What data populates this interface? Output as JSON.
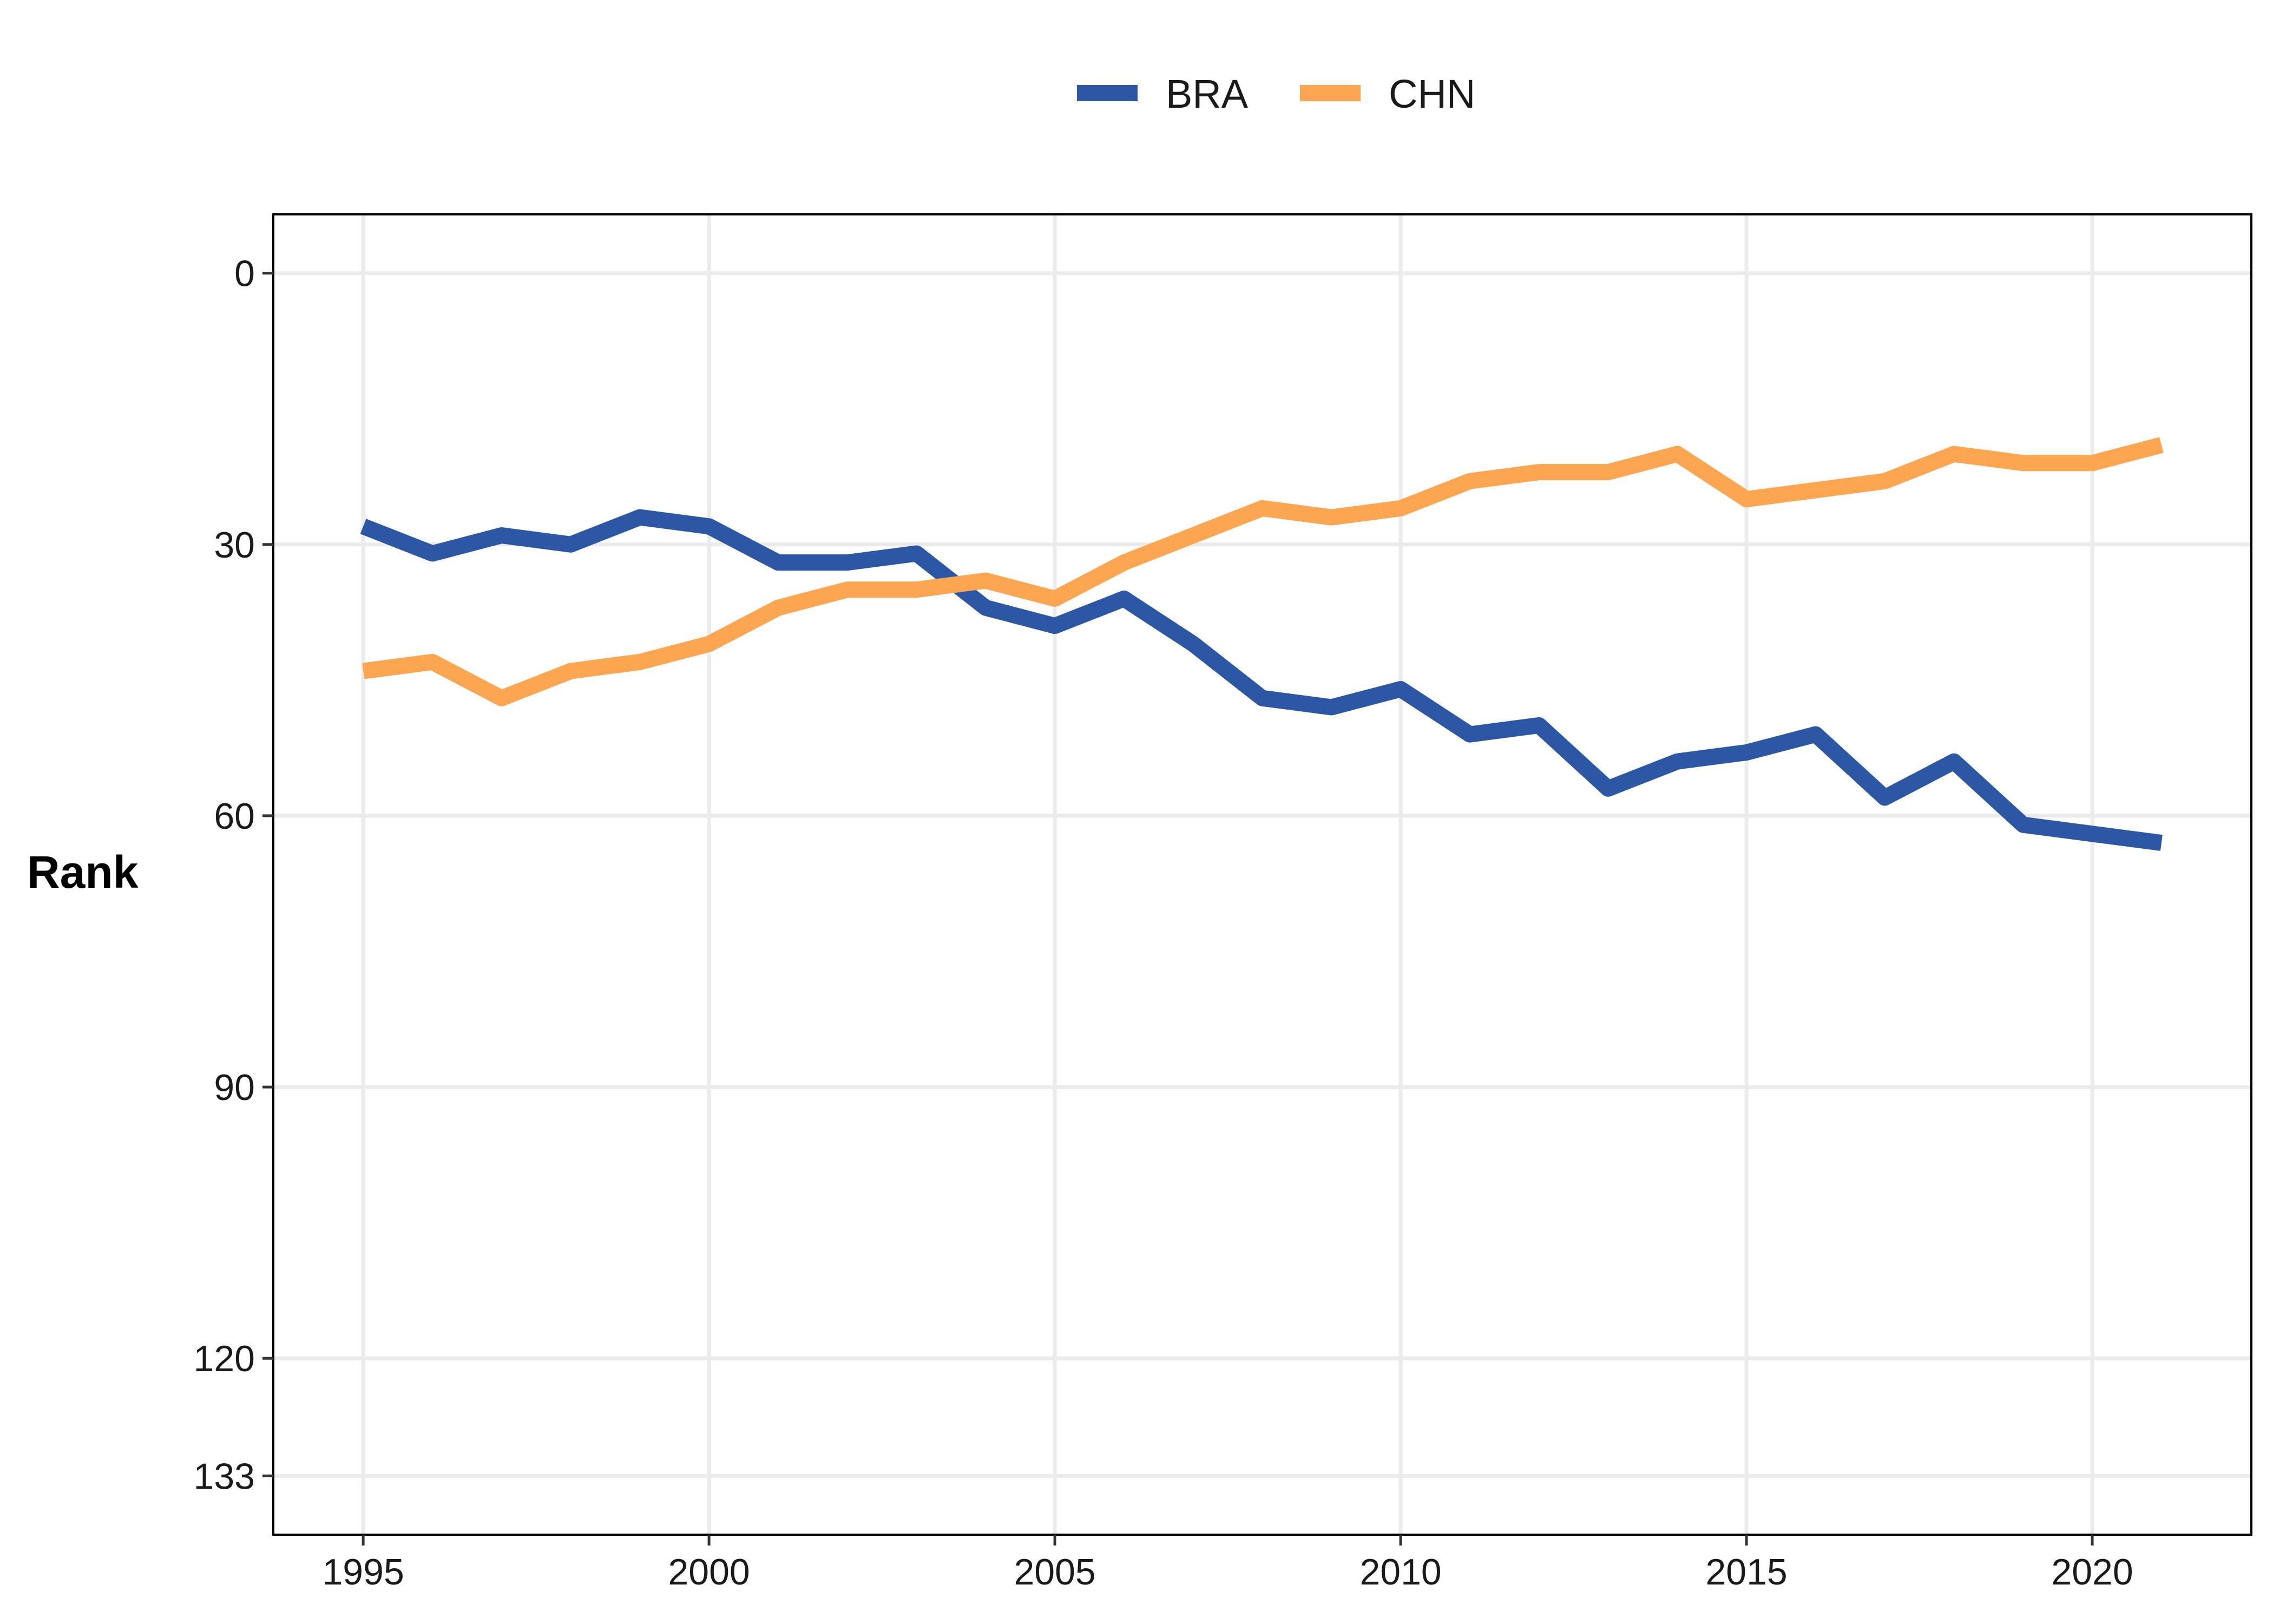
{
  "chart_data": {
    "type": "line",
    "ylabel": "Rank",
    "xlabel": "",
    "x": [
      1995,
      1996,
      1997,
      1998,
      1999,
      2000,
      2001,
      2002,
      2003,
      2004,
      2005,
      2006,
      2007,
      2008,
      2009,
      2010,
      2011,
      2012,
      2013,
      2014,
      2015,
      2016,
      2017,
      2018,
      2019,
      2020,
      2021
    ],
    "series": [
      {
        "name": "BRA",
        "color": "#2c57a5",
        "values": [
          28,
          31,
          29,
          30,
          27,
          28,
          32,
          32,
          31,
          37,
          39,
          36,
          41,
          47,
          48,
          46,
          51,
          50,
          57,
          54,
          53,
          51,
          58,
          54,
          61,
          62,
          63
        ]
      },
      {
        "name": "CHN",
        "color": "#fca651",
        "values": [
          44,
          43,
          47,
          44,
          43,
          41,
          37,
          35,
          35,
          34,
          36,
          32,
          29,
          26,
          27,
          26,
          23,
          22,
          22,
          20,
          25,
          24,
          23,
          20,
          21,
          21,
          19
        ]
      }
    ],
    "xticks": [
      "1995",
      "2000",
      "2005",
      "2010",
      "2015",
      "2020"
    ],
    "yticks": [
      "0",
      "30",
      "60",
      "90",
      "120",
      "133"
    ],
    "xlim": [
      1993.7,
      2022.3
    ],
    "ylim": [
      -6.5,
      139.5
    ],
    "y_inverted": true,
    "grid": true,
    "legend_position": "top"
  }
}
